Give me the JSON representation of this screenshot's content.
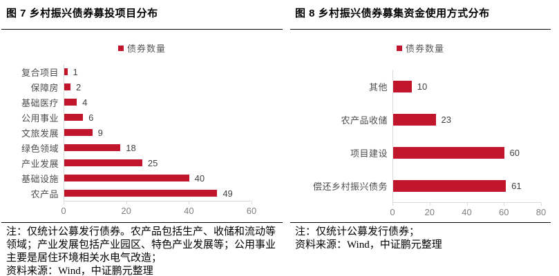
{
  "colors": {
    "bar_red": "#C0152B",
    "axis_line": "#D9D9D9",
    "tick_label": "#7F7F7F",
    "category_label": "#4D4D4D",
    "value_label": "#404040",
    "legend_text": "#595959",
    "rule": "#000000",
    "background": "#FFFFFF"
  },
  "panels": [
    {
      "title": "图 7 乡村振兴债券募投项目分布",
      "legend_label": "债券数量",
      "notes": [
        "注：仅统计公募发行债券。农产品包括生产、收储和流动等",
        "领域；产业发展包括产业园区、特色产业发展等；公用事业",
        "主要是居住环境相关水电气改造；",
        "资料来源：Wind，中证鹏元整理"
      ]
    },
    {
      "title": "图 8 乡村振兴债券募集资金使用方式分布",
      "legend_label": "债券数量",
      "notes": [
        "注：仅统计公募发行债券；",
        "资料来源：Wind，中证鹏元整理"
      ]
    }
  ],
  "chart_data": [
    {
      "type": "bar",
      "orientation": "horizontal",
      "title": "图 7 乡村振兴债券募投项目分布",
      "legend": [
        "债券数量"
      ],
      "legend_position": "top-center",
      "categories": [
        "复合项目",
        "保障房",
        "基础医疗",
        "公用事业",
        "文旅发展",
        "绿色领域",
        "产业发展",
        "基础设施",
        "农产品"
      ],
      "values": [
        1,
        2,
        4,
        6,
        9,
        18,
        25,
        40,
        49
      ],
      "value_labels_shown": true,
      "xlabel": "",
      "ylabel": "",
      "xlim": [
        0,
        60
      ],
      "xticks": [
        0,
        20,
        40,
        60
      ],
      "grid": false,
      "bar_color": "#C0152B"
    },
    {
      "type": "bar",
      "orientation": "horizontal",
      "title": "图 8 乡村振兴债券募集资金使用方式分布",
      "legend": [
        "债券数量"
      ],
      "legend_position": "top-center",
      "categories": [
        "其他",
        "农产品收储",
        "项目建设",
        "偿还乡村振兴债务"
      ],
      "values": [
        10,
        23,
        60,
        61
      ],
      "value_labels_shown": true,
      "xlabel": "",
      "ylabel": "",
      "xlim": [
        0,
        80
      ],
      "xticks": [
        0,
        20,
        40,
        60,
        80
      ],
      "grid": false,
      "bar_color": "#C0152B"
    }
  ]
}
